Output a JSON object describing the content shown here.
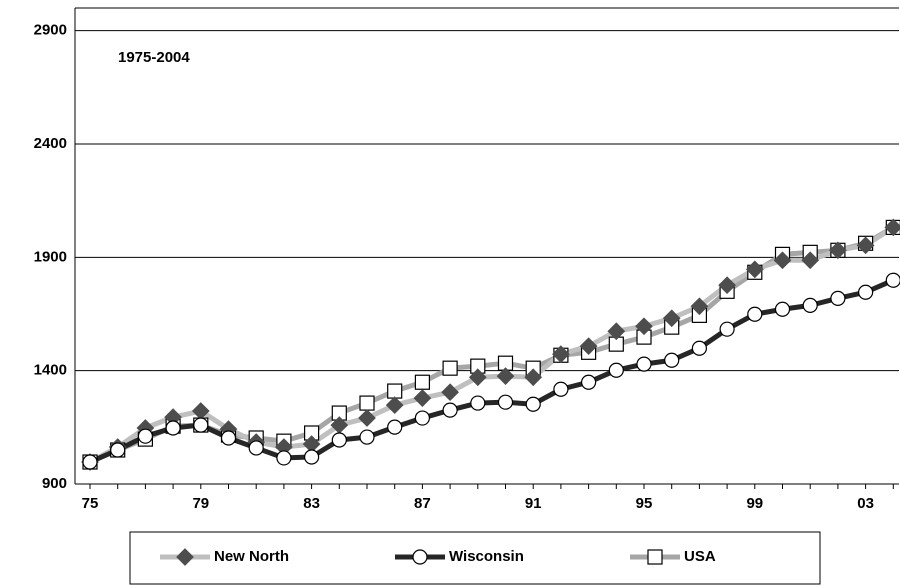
{
  "chart_data": {
    "type": "line",
    "annotation": "1975-2004",
    "categories": [
      "75",
      null,
      null,
      null,
      "79",
      null,
      null,
      null,
      "83",
      null,
      null,
      null,
      "87",
      null,
      null,
      null,
      "91",
      null,
      null,
      null,
      "95",
      null,
      null,
      null,
      "99",
      null,
      null,
      null,
      "03",
      null
    ],
    "series": [
      {
        "name": "USA",
        "color": "#a6a6a6",
        "marker": "square",
        "marker_color": "#ffffff",
        "values": [
          997,
          1050,
          1098,
          1155,
          1160,
          1116,
          1103,
          1089,
          1125,
          1213,
          1257,
          1310,
          1349,
          1411,
          1420,
          1433,
          1411,
          1468,
          1481,
          1517,
          1548,
          1592,
          1644,
          1750,
          1834,
          1913,
          1922,
          1931,
          1962,
          2032
        ]
      },
      {
        "name": "New North",
        "color": "#bfbfbf",
        "marker": "diamond",
        "marker_color": "#4d4d4d",
        "values": [
          997,
          1063,
          1147,
          1195,
          1222,
          1142,
          1085,
          1063,
          1076,
          1160,
          1191,
          1248,
          1279,
          1305,
          1371,
          1376,
          1371,
          1473,
          1508,
          1574,
          1596,
          1631,
          1684,
          1777,
          1847,
          1887,
          1887,
          1931,
          1953,
          2032
        ]
      },
      {
        "name": "Wisconsin",
        "color": "#262626",
        "marker": "circle",
        "marker_color": "#ffffff",
        "values": [
          997,
          1050,
          1111,
          1147,
          1160,
          1103,
          1059,
          1015,
          1019,
          1094,
          1107,
          1151,
          1191,
          1226,
          1257,
          1261,
          1252,
          1318,
          1349,
          1402,
          1429,
          1446,
          1499,
          1583,
          1649,
          1671,
          1688,
          1719,
          1746,
          1799
        ]
      }
    ],
    "legend_order": [
      1,
      2,
      0
    ],
    "ylim": [
      900,
      3000
    ],
    "yticks": [
      900,
      1400,
      1900,
      2400,
      2900
    ],
    "grid": true
  }
}
